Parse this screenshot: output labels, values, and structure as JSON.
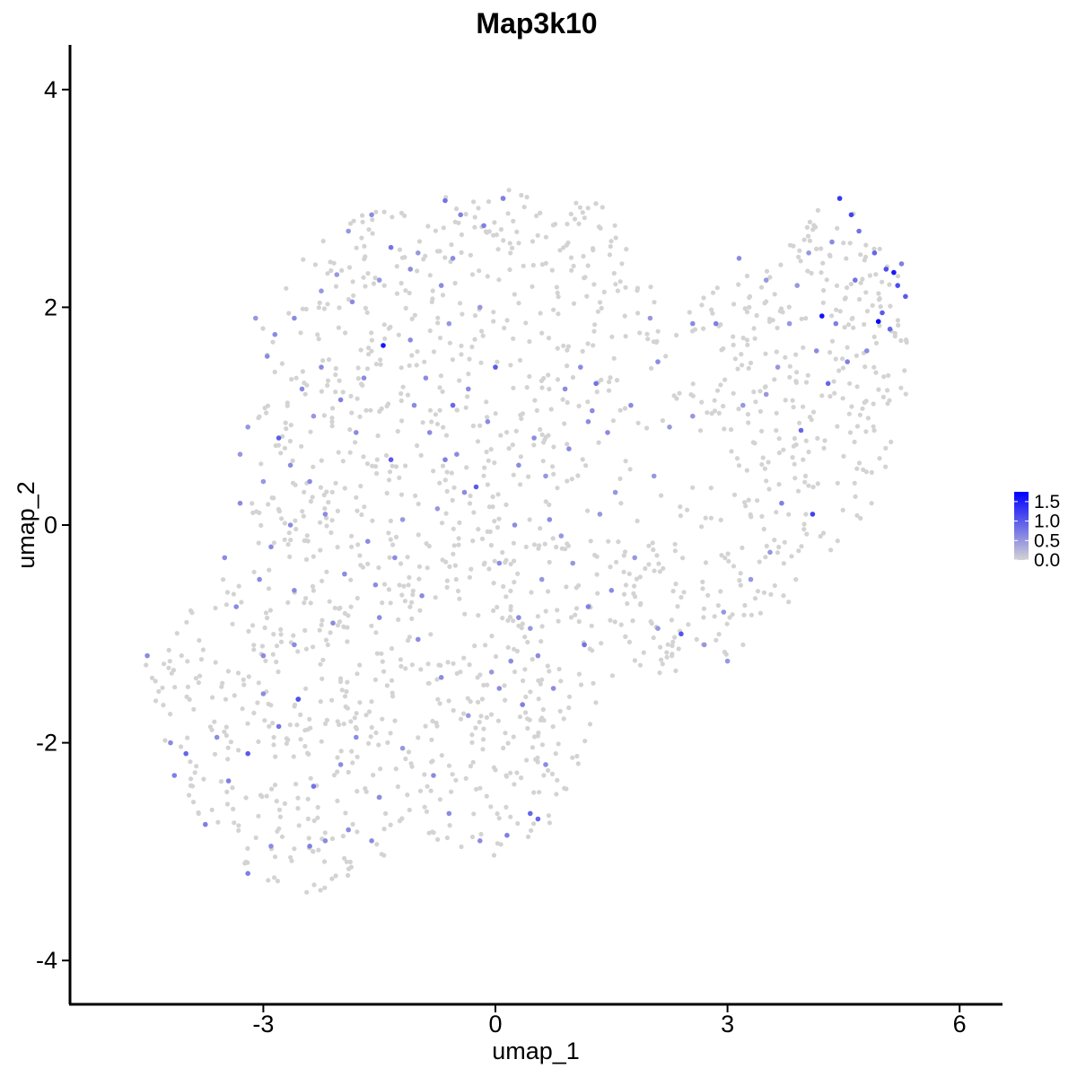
{
  "chart_data": {
    "type": "scatter",
    "title": "Map3k10",
    "xlabel": "umap_1",
    "ylabel": "umap_2",
    "xlim": [
      -5.3,
      6.6
    ],
    "ylim": [
      -4.35,
      4.4
    ],
    "x_ticks": [
      -3,
      0,
      3,
      6
    ],
    "y_ticks": [
      -4,
      -2,
      0,
      2,
      4
    ],
    "x_tick_labels": [
      "-3",
      "0",
      "3",
      "6"
    ],
    "y_tick_labels": [
      "-4",
      "-2",
      "0",
      "2",
      "4"
    ],
    "grid": false,
    "legend": {
      "placement": "right",
      "type": "colorbar",
      "range": [
        0,
        1.75
      ],
      "ticks": [
        0.0,
        0.5,
        1.0,
        1.5
      ],
      "tick_labels": [
        "0.0",
        "0.5",
        "1.0",
        "1.5"
      ],
      "low_color": "#d3d3d3",
      "high_color": "#0000ff"
    },
    "point_count_estimate": 1600,
    "points": [
      [
        4.95,
        1.87,
        1.7
      ],
      [
        5.15,
        2.32,
        1.55
      ],
      [
        4.22,
        1.92,
        1.6
      ],
      [
        -1.45,
        1.65,
        1.55
      ],
      [
        4.45,
        3.0,
        1.3
      ],
      [
        4.6,
        2.85,
        1.2
      ],
      [
        5.05,
        2.35,
        1.1
      ],
      [
        5.2,
        2.2,
        1.1
      ],
      [
        5.3,
        2.1,
        1.0
      ],
      [
        5.0,
        1.95,
        1.0
      ],
      [
        5.1,
        1.8,
        0.9
      ],
      [
        4.9,
        2.5,
        0.9
      ],
      [
        4.7,
        2.7,
        0.8
      ],
      [
        4.65,
        2.25,
        0.8
      ],
      [
        4.4,
        1.85,
        0.7
      ],
      [
        4.55,
        1.5,
        0.7
      ],
      [
        4.8,
        1.6,
        0.6
      ],
      [
        5.25,
        2.4,
        0.7
      ],
      [
        4.35,
        2.6,
        0.6
      ],
      [
        4.3,
        1.3,
        0.9
      ],
      [
        4.1,
        0.1,
        1.2
      ],
      [
        3.95,
        0.87,
        0.9
      ],
      [
        3.7,
        0.2,
        0.7
      ],
      [
        4.15,
        1.6,
        0.6
      ],
      [
        2.4,
        -1.0,
        1.05
      ],
      [
        2.85,
        1.85,
        0.7
      ],
      [
        2.55,
        1.85,
        0.6
      ],
      [
        2.1,
        1.5,
        0.6
      ],
      [
        2.0,
        1.9,
        0.5
      ],
      [
        1.75,
        1.1,
        0.6
      ],
      [
        2.05,
        0.45,
        0.5
      ],
      [
        2.25,
        0.9,
        0.5
      ],
      [
        2.55,
        1.0,
        0.5
      ],
      [
        3.2,
        1.1,
        0.5
      ],
      [
        1.3,
        1.3,
        0.8
      ],
      [
        1.25,
        1.05,
        0.6
      ],
      [
        1.1,
        1.45,
        0.6
      ],
      [
        0.9,
        1.25,
        0.6
      ],
      [
        0.95,
        0.7,
        0.6
      ],
      [
        1.2,
        0.95,
        0.6
      ],
      [
        1.55,
        0.3,
        0.5
      ],
      [
        1.5,
        -0.6,
        0.6
      ],
      [
        1.2,
        -0.75,
        0.7
      ],
      [
        1.15,
        -1.1,
        0.8
      ],
      [
        0.85,
        -0.1,
        0.5
      ],
      [
        0.6,
        -0.5,
        0.5
      ],
      [
        0.45,
        -0.95,
        0.5
      ],
      [
        0.2,
        -1.25,
        0.6
      ],
      [
        -0.05,
        -1.35,
        0.5
      ],
      [
        -0.25,
        0.35,
        1.0
      ],
      [
        -0.65,
        0.6,
        0.7
      ],
      [
        -0.85,
        0.85,
        0.6
      ],
      [
        -1.05,
        1.1,
        0.6
      ],
      [
        -0.55,
        1.1,
        0.9
      ],
      [
        -0.35,
        1.25,
        0.6
      ],
      [
        -0.9,
        1.35,
        0.6
      ],
      [
        -1.1,
        1.7,
        0.6
      ],
      [
        -0.6,
        1.85,
        0.5
      ],
      [
        -0.2,
        2.0,
        0.5
      ],
      [
        -0.7,
        2.2,
        0.6
      ],
      [
        -1.1,
        2.35,
        0.6
      ],
      [
        -1.35,
        2.55,
        0.8
      ],
      [
        -1.6,
        2.85,
        0.6
      ],
      [
        -1.85,
        2.05,
        0.6
      ],
      [
        0.0,
        1.45,
        1.0
      ],
      [
        -0.1,
        0.95,
        0.6
      ],
      [
        -0.5,
        0.65,
        0.6
      ],
      [
        -1.35,
        0.6,
        1.0
      ],
      [
        -1.8,
        0.85,
        0.6
      ],
      [
        -2.0,
        1.15,
        0.7
      ],
      [
        -1.7,
        1.35,
        0.6
      ],
      [
        -2.25,
        1.45,
        0.6
      ],
      [
        -2.5,
        1.25,
        0.6
      ],
      [
        -2.8,
        0.8,
        1.0
      ],
      [
        -2.65,
        0.55,
        0.6
      ],
      [
        -2.4,
        0.4,
        0.6
      ],
      [
        -2.2,
        0.1,
        0.6
      ],
      [
        -1.65,
        -0.15,
        0.6
      ],
      [
        -1.3,
        -0.3,
        0.6
      ],
      [
        -0.95,
        -0.65,
        0.6
      ],
      [
        -1.5,
        -0.85,
        0.6
      ],
      [
        -2.1,
        -0.9,
        0.6
      ],
      [
        -2.6,
        -1.1,
        0.6
      ],
      [
        -3.0,
        -1.55,
        0.6
      ],
      [
        -2.55,
        -1.6,
        1.1
      ],
      [
        -2.8,
        -1.85,
        0.8
      ],
      [
        -3.2,
        -2.1,
        1.0
      ],
      [
        -3.45,
        -2.35,
        0.7
      ],
      [
        -3.75,
        -2.75,
        0.7
      ],
      [
        -4.0,
        -2.1,
        0.9
      ],
      [
        -4.15,
        -2.3,
        0.7
      ],
      [
        -4.2,
        -2.0,
        0.6
      ],
      [
        -4.5,
        -1.2,
        0.6
      ],
      [
        -3.6,
        -1.95,
        0.6
      ],
      [
        -2.35,
        -2.4,
        0.8
      ],
      [
        -2.2,
        -2.9,
        0.6
      ],
      [
        -2.0,
        -2.2,
        0.6
      ],
      [
        -1.8,
        -1.95,
        0.6
      ],
      [
        -1.5,
        -2.5,
        0.6
      ],
      [
        -1.2,
        -2.05,
        0.5
      ],
      [
        -0.8,
        -2.3,
        0.6
      ],
      [
        -0.6,
        -2.65,
        0.6
      ],
      [
        -0.2,
        -2.9,
        0.6
      ],
      [
        0.15,
        -2.85,
        0.7
      ],
      [
        0.45,
        -2.65,
        0.9
      ],
      [
        0.55,
        -2.7,
        0.9
      ],
      [
        0.65,
        -2.2,
        0.6
      ],
      [
        0.35,
        -1.65,
        0.7
      ],
      [
        0.75,
        -1.5,
        0.6
      ],
      [
        0.55,
        -1.2,
        0.6
      ],
      [
        0.05,
        -1.5,
        0.6
      ],
      [
        -0.35,
        -1.75,
        0.5
      ],
      [
        -0.7,
        -1.4,
        0.6
      ],
      [
        -1.0,
        -1.05,
        0.6
      ],
      [
        -3.2,
        -3.2,
        0.7
      ],
      [
        -2.9,
        -2.95,
        0.6
      ],
      [
        -2.4,
        -2.95,
        0.7
      ],
      [
        -1.9,
        -2.8,
        0.6
      ],
      [
        -1.6,
        -2.9,
        0.6
      ],
      [
        -2.65,
        0.0,
        0.6
      ],
      [
        -2.9,
        -0.2,
        0.6
      ],
      [
        -3.3,
        0.2,
        0.6
      ],
      [
        -3.05,
        -0.5,
        0.6
      ],
      [
        -3.5,
        -0.3,
        0.6
      ],
      [
        -3.35,
        -0.75,
        0.6
      ],
      [
        -3.0,
        -1.2,
        0.6
      ],
      [
        -2.6,
        -0.6,
        0.6
      ],
      [
        -1.95,
        -0.45,
        0.6
      ],
      [
        -1.55,
        -0.55,
        0.6
      ],
      [
        0.25,
        0.0,
        0.6
      ],
      [
        0.05,
        -0.35,
        0.6
      ],
      [
        0.3,
        -0.85,
        0.6
      ],
      [
        0.7,
        0.05,
        0.6
      ],
      [
        1.0,
        -0.35,
        0.5
      ],
      [
        1.35,
        0.1,
        0.5
      ],
      [
        1.8,
        -0.3,
        0.5
      ],
      [
        2.1,
        -0.95,
        0.5
      ],
      [
        2.7,
        -1.1,
        0.5
      ],
      [
        3.0,
        -1.25,
        0.5
      ],
      [
        3.3,
        -0.5,
        0.5
      ],
      [
        2.95,
        -0.8,
        0.5
      ],
      [
        3.55,
        -0.25,
        0.5
      ],
      [
        3.65,
        1.45,
        0.5
      ],
      [
        3.5,
        1.2,
        0.5
      ],
      [
        3.15,
        2.45,
        0.6
      ],
      [
        3.5,
        2.25,
        0.5
      ],
      [
        3.9,
        2.2,
        0.5
      ],
      [
        4.05,
        2.5,
        0.5
      ],
      [
        3.8,
        1.85,
        0.5
      ],
      [
        -0.15,
        2.75,
        0.7
      ],
      [
        -0.45,
        2.85,
        0.7
      ],
      [
        -0.65,
        2.98,
        0.8
      ],
      [
        0.1,
        3.0,
        0.7
      ],
      [
        -0.55,
        2.45,
        0.6
      ],
      [
        -1.0,
        2.5,
        0.5
      ],
      [
        -1.5,
        2.25,
        0.5
      ],
      [
        -1.9,
        2.7,
        0.5
      ],
      [
        -2.05,
        2.3,
        0.5
      ],
      [
        -2.25,
        2.15,
        0.5
      ],
      [
        -2.6,
        1.9,
        0.6
      ],
      [
        -2.85,
        1.75,
        0.6
      ],
      [
        -2.95,
        1.55,
        0.6
      ],
      [
        -3.1,
        1.9,
        0.5
      ],
      [
        -2.35,
        1.0,
        0.5
      ],
      [
        -3.3,
        0.65,
        0.5
      ],
      [
        -3.2,
        0.9,
        0.5
      ],
      [
        -3.0,
        0.4,
        0.5
      ],
      [
        -1.2,
        0.05,
        0.5
      ],
      [
        -0.75,
        0.15,
        0.5
      ],
      [
        -0.4,
        0.3,
        0.6
      ],
      [
        0.3,
        0.55,
        0.6
      ],
      [
        0.5,
        0.8,
        0.6
      ],
      [
        0.65,
        0.45,
        0.5
      ],
      [
        1.45,
        0.85,
        0.6
      ]
    ],
    "unexpressed_regions_note_removed": true
  }
}
